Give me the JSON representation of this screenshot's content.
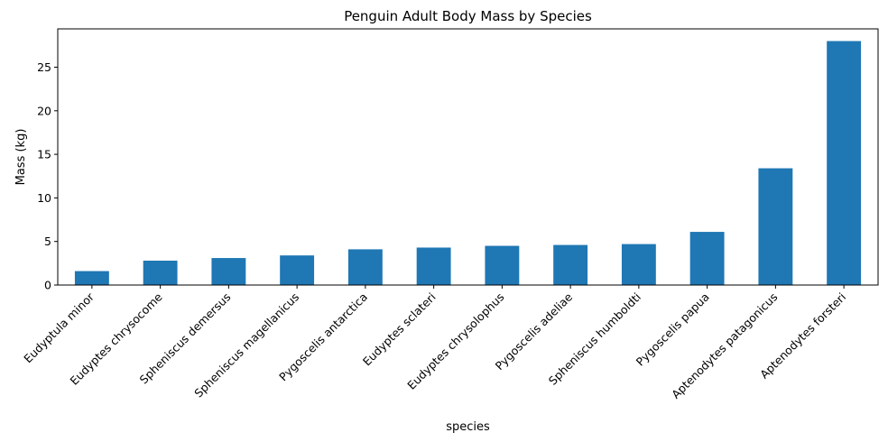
{
  "chart_data": {
    "type": "bar",
    "title": "Penguin Adult Body Mass by Species",
    "xlabel": "species",
    "ylabel": "Mass (kg)",
    "categories": [
      "Eudyptula minor",
      "Eudyptes chrysocome",
      "Spheniscus demersus",
      "Spheniscus magellanicus",
      "Pygoscelis antarctica",
      "Eudyptes sclateri",
      "Eudyptes chrysolophus",
      "Pygoscelis adeliae",
      "Spheniscus humboldti",
      "Pygoscelis papua",
      "Aptenodytes patagonicus",
      "Aptenodytes forsteri"
    ],
    "values": [
      1.6,
      2.8,
      3.1,
      3.4,
      4.1,
      4.3,
      4.5,
      4.6,
      4.7,
      6.1,
      13.4,
      28.0
    ],
    "ylim": [
      0,
      29.4
    ],
    "yticks": [
      0,
      5,
      10,
      15,
      20,
      25
    ],
    "grid": false,
    "bar_color": "#1f77b4"
  }
}
